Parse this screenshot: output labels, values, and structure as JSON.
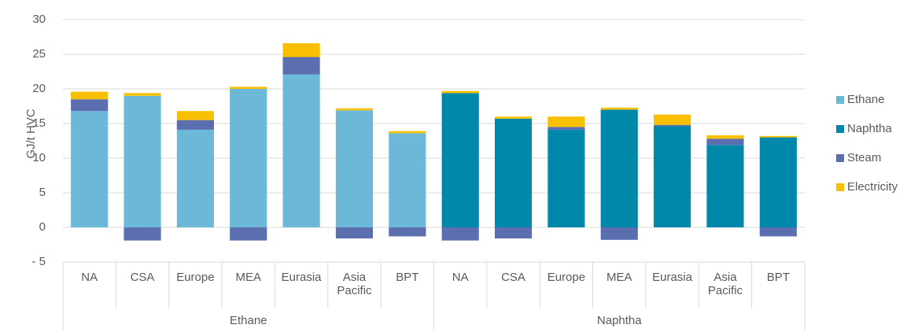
{
  "chart_data": {
    "type": "stacked_bar",
    "y_label": "GJ/t HVC",
    "categories": [
      "NA",
      "CSA",
      "Europe",
      "MEA",
      "Eurasia",
      "Asia Pacific",
      "BPT",
      "NA",
      "CSA",
      "Europe",
      "MEA",
      "Eurasia",
      "Asia Pacific",
      "BPT"
    ],
    "groups": [
      {
        "label": "Ethane",
        "count": 7
      },
      {
        "label": "Naphtha",
        "count": 7
      }
    ],
    "series": [
      {
        "name": "Ethane",
        "color": "#6cb8d8",
        "values": [
          16.8,
          19.0,
          14.1,
          20.0,
          22.1,
          16.9,
          13.6,
          0,
          0,
          0,
          0,
          0,
          0,
          0
        ]
      },
      {
        "name": "Naphtha",
        "color": "#0088aa",
        "values": [
          0,
          0,
          0,
          0,
          0,
          0,
          0,
          19.4,
          15.7,
          14.1,
          17.0,
          14.6,
          11.9,
          13.0
        ]
      },
      {
        "name": "Steam",
        "color": "#5b6fb0",
        "values": [
          1.7,
          -1.9,
          1.4,
          -1.9,
          2.5,
          -1.6,
          -1.3,
          -1.9,
          -1.6,
          0.4,
          -1.8,
          0.2,
          0.9,
          -1.3
        ]
      },
      {
        "name": "Electricity",
        "color": "#f8c000",
        "values": [
          1.1,
          0.4,
          1.3,
          0.3,
          2.0,
          0.3,
          0.3,
          0.3,
          0.3,
          1.5,
          0.3,
          1.5,
          0.5,
          0.2
        ]
      }
    ],
    "ylim": [
      -5,
      30
    ],
    "yticks": [
      {
        "value": -5,
        "label": "- 5"
      },
      0,
      5,
      10,
      15,
      20,
      25,
      30
    ],
    "grid": true,
    "legend": "right"
  }
}
